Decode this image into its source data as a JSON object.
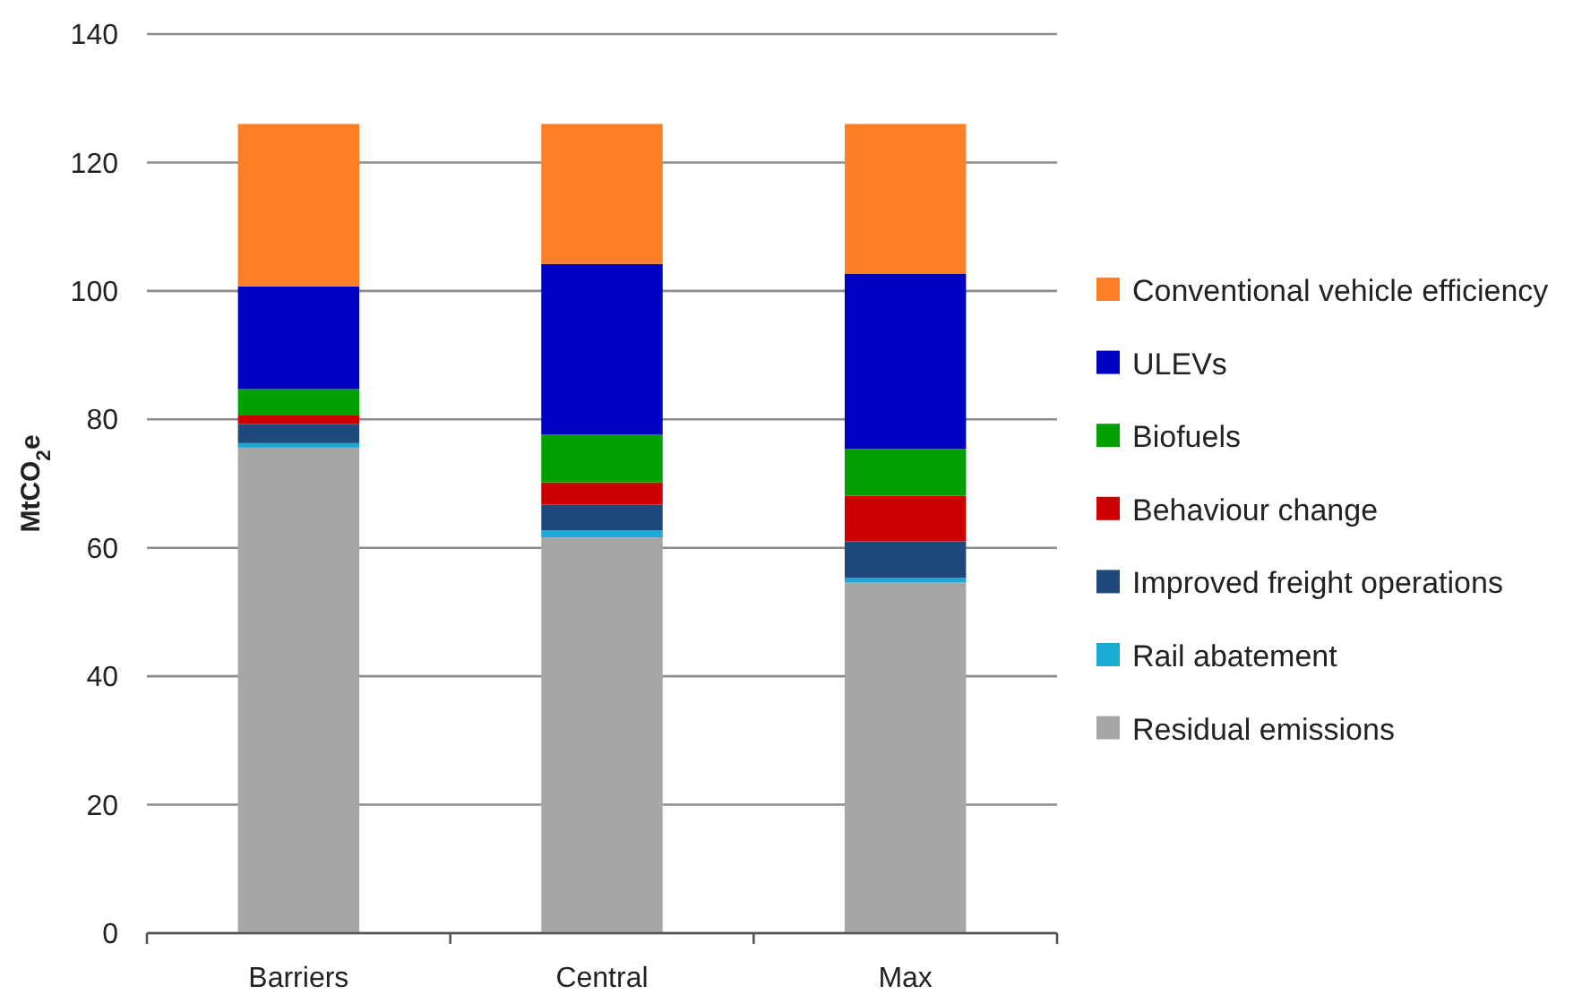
{
  "chart_data": {
    "type": "bar",
    "stacked": true,
    "ylabel": "MtCO$_{2}$e",
    "categories": [
      "Barriers",
      "Central",
      "Max"
    ],
    "series": [
      {
        "name": "Residual emissions",
        "color": "#a6a6a6",
        "values": [
          75.6,
          61.6,
          54.6
        ]
      },
      {
        "name": "Rail abatement",
        "color": "#1ba9d6",
        "values": [
          0.7,
          1.1,
          0.7
        ]
      },
      {
        "name": "Improved freight operations",
        "color": "#1f497d",
        "values": [
          3,
          4,
          5.7
        ]
      },
      {
        "name": "Behaviour change",
        "color": "#cc0000",
        "values": [
          1.3,
          3.5,
          7.1
        ]
      },
      {
        "name": "Biofuels",
        "color": "#00a000",
        "values": [
          4.1,
          7.4,
          7.3
        ]
      },
      {
        "name": "ULEVs",
        "color": "#0000c0",
        "values": [
          16,
          26.6,
          27.3
        ]
      },
      {
        "name": "Conventional vehicle efficiency",
        "color": "#ff7f27",
        "values": [
          25.3,
          21.8,
          23.3
        ]
      }
    ],
    "ylim": [
      0,
      140
    ],
    "yticks": [
      0,
      20,
      40,
      60,
      80,
      100,
      120,
      140
    ],
    "grid": "y",
    "legend": "right"
  }
}
